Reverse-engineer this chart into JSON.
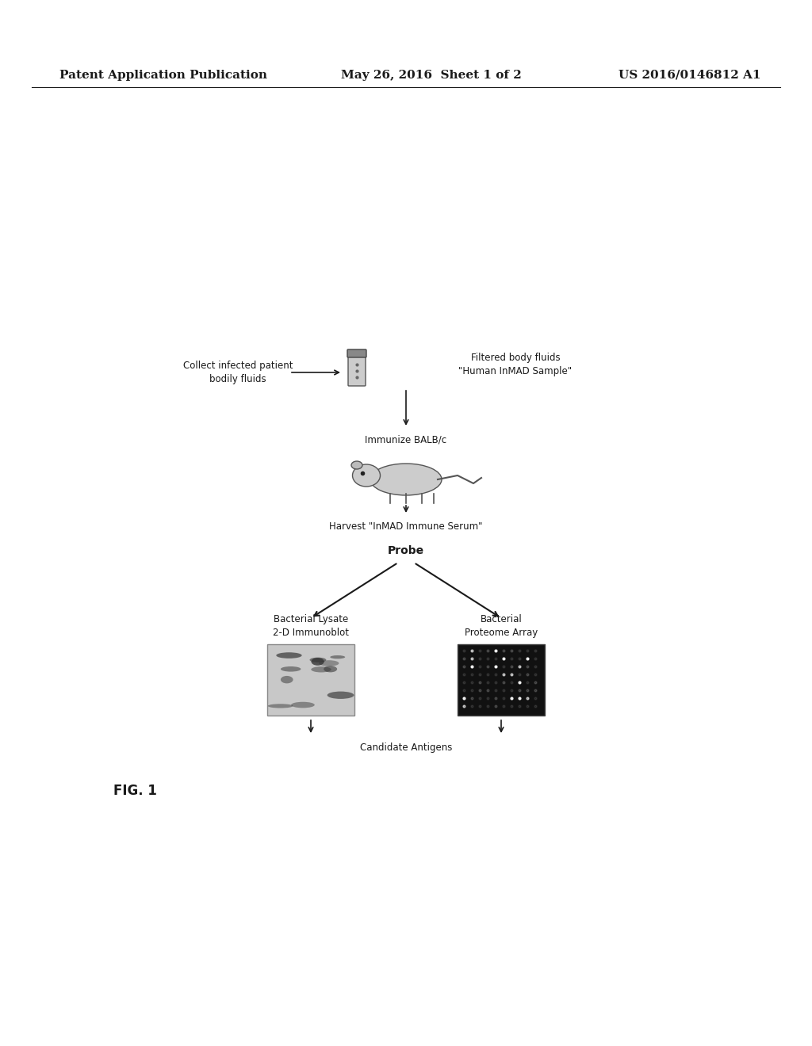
{
  "header_left": "Patent Application Publication",
  "header_center": "May 26, 2016  Sheet 1 of 2",
  "header_right": "US 2016/0146812 A1",
  "fig_label": "FIG. 1",
  "text_collect": "Collect infected patient\nbodily fluids",
  "text_filtered": "Filtered body fluids\n\"Human InMAD Sample\"",
  "text_immunize": "Immunize BALB/c",
  "text_harvest": "Harvest \"InMAD Immune Serum\"",
  "text_probe": "Probe",
  "text_bacterial_lysate": "Bacterial Lysate\n2-D Immunoblot",
  "text_bacterial_proteome": "Bacterial\nProteome Array",
  "text_candidate": "Candidate Antigens",
  "bg_color": "#ffffff",
  "text_color": "#1a1a1a",
  "header_fontsize": 11,
  "body_fontsize": 8.5,
  "probe_fontsize": 10
}
